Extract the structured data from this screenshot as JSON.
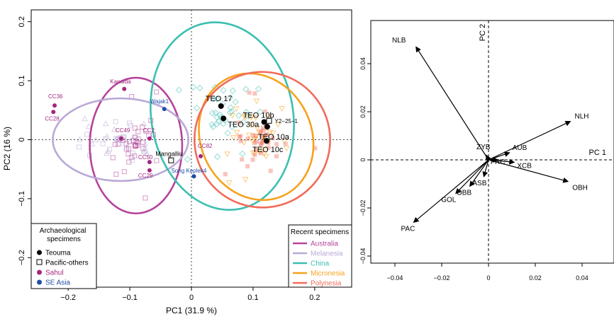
{
  "charts": [
    {
      "type": "scatter",
      "xlabel": "PC1 (31.9 %)",
      "ylabel": "PC2 (16 %)",
      "xlim": [
        -0.26,
        0.26
      ],
      "ylim": [
        -0.25,
        0.22
      ],
      "xticks": [
        -0.2,
        -0.1,
        0,
        0.1,
        0.2
      ],
      "xtick_labels": [
        "−0.2",
        "−0.1",
        "0",
        "0.1",
        "0.2"
      ],
      "yticks": [
        -0.2,
        -0.1,
        0,
        0.1,
        0.2
      ],
      "ytick_labels": [
        "−0.2",
        "−0.1",
        "0",
        "0.1",
        "0.2"
      ],
      "ellipses": [
        {
          "group": "Australia",
          "color": "#b5449b",
          "center": [
            -0.09,
            -0.01
          ],
          "rx": 0.075,
          "ry": 0.115,
          "angle": 0
        },
        {
          "group": "Melanesia",
          "color": "#b9a9d6",
          "center": [
            -0.115,
            0.0
          ],
          "rx": 0.11,
          "ry": 0.07,
          "angle": 0
        },
        {
          "group": "China",
          "color": "#3cbfb1",
          "center": [
            0.05,
            0.04
          ],
          "rx": 0.115,
          "ry": 0.16,
          "angle": -10
        },
        {
          "group": "Micronesia",
          "color": "#f6a21d",
          "center": [
            0.105,
            0.005
          ],
          "rx": 0.09,
          "ry": 0.11,
          "angle": -25
        },
        {
          "group": "Polynesia",
          "color": "#f26b59",
          "center": [
            0.115,
            0.0
          ],
          "rx": 0.11,
          "ry": 0.115,
          "angle": -25
        }
      ],
      "points": [
        {
          "label": "TEO 17",
          "group": "Teouma",
          "x": 0.048,
          "y": 0.057
        },
        {
          "label": "TEO 30a",
          "group": "Teouma",
          "x": 0.052,
          "y": 0.036
        },
        {
          "label": "TEO 10b",
          "group": "Teouma",
          "x": 0.118,
          "y": 0.03
        },
        {
          "label": "TEO 10a",
          "group": "Teouma",
          "x": 0.123,
          "y": 0.022
        },
        {
          "label": "TEO 10c",
          "group": "Teouma",
          "x": 0.122,
          "y": -0.002
        },
        {
          "label": "Y2−25−1",
          "group": "Pacific-others",
          "x": 0.126,
          "y": 0.032
        },
        {
          "label": "Mangalliu",
          "group": "Pacific-others",
          "x": -0.033,
          "y": -0.035
        },
        {
          "label": "Kanalda",
          "group": "Sahul",
          "x": -0.109,
          "y": 0.086
        },
        {
          "label": "CC36",
          "group": "Sahul",
          "x": -0.222,
          "y": 0.058
        },
        {
          "label": "CC28",
          "group": "Sahul",
          "x": -0.224,
          "y": 0.047
        },
        {
          "label": "CC49",
          "group": "Sahul",
          "x": -0.114,
          "y": 0.002
        },
        {
          "label": "CC2",
          "group": "Sahul",
          "x": -0.068,
          "y": 0.002
        },
        {
          "label": "CC82",
          "group": "Sahul",
          "x": 0.015,
          "y": -0.028
        },
        {
          "label": "CC50",
          "group": "Sahul",
          "x": -0.068,
          "y": -0.038
        },
        {
          "label": "CC29",
          "group": "Sahul",
          "x": -0.068,
          "y": -0.052
        },
        {
          "label": "Wajak1",
          "group": "SE Asia",
          "x": -0.044,
          "y": 0.052
        },
        {
          "label": "Song Keplek4",
          "group": "SE Asia",
          "x": 0.004,
          "y": -0.062
        }
      ],
      "legend_archaeological": {
        "title": "Archaeological specimens",
        "items": [
          {
            "label": "Teouma",
            "color": "#000000",
            "marker": "dot"
          },
          {
            "label": "Pacific-others",
            "color": "#000000",
            "marker": "square"
          },
          {
            "label": "Sahul",
            "color": "#a3277f",
            "marker": "dot"
          },
          {
            "label": "SE Asia",
            "color": "#1f4ea3",
            "marker": "dot"
          }
        ]
      },
      "legend_recent": {
        "title": "Recent specimens",
        "items": [
          {
            "label": "Australia",
            "color": "#b5449b"
          },
          {
            "label": "Melanesia",
            "color": "#b9a9d6"
          },
          {
            "label": "China",
            "color": "#3cbfb1"
          },
          {
            "label": "Micronesia",
            "color": "#f6a21d"
          },
          {
            "label": "Polynesia",
            "color": "#f26b59"
          }
        ]
      }
    },
    {
      "type": "biplot",
      "xlabel": "PC 1",
      "ylabel": "PC 2",
      "xlim": [
        -0.05,
        0.055
      ],
      "ylim": [
        -0.055,
        0.055
      ],
      "xticks": [
        -0.04,
        -0.02,
        0,
        0.02,
        0.04
      ],
      "xtick_labels": [
        "−0.04",
        "−0.02",
        "0",
        "0.02",
        "0.04"
      ],
      "yticks": [
        -0.04,
        -0.02,
        0,
        0.02,
        0.04
      ],
      "ytick_labels": [
        "−0.04",
        "−0.02",
        "0",
        "0.02",
        "0.04"
      ],
      "vectors": [
        {
          "label": "NLB",
          "x": -0.031,
          "y": 0.047
        },
        {
          "label": "NLH",
          "x": 0.035,
          "y": 0.016
        },
        {
          "label": "OBH",
          "x": 0.034,
          "y": -0.009
        },
        {
          "label": "PAC",
          "x": -0.032,
          "y": -0.026
        },
        {
          "label": "ZYB",
          "x": -0.001,
          "y": 0.002
        },
        {
          "label": "AUB",
          "x": 0.009,
          "y": 0.003
        },
        {
          "label": "FRC",
          "x": 0.004,
          "y": 0.0
        },
        {
          "label": "XCB",
          "x": 0.011,
          "y": -0.001
        },
        {
          "label": "ASB",
          "x": -0.002,
          "y": -0.007
        },
        {
          "label": "OBB",
          "x": -0.008,
          "y": -0.011
        },
        {
          "label": "GOL",
          "x": -0.014,
          "y": -0.014
        }
      ]
    }
  ]
}
